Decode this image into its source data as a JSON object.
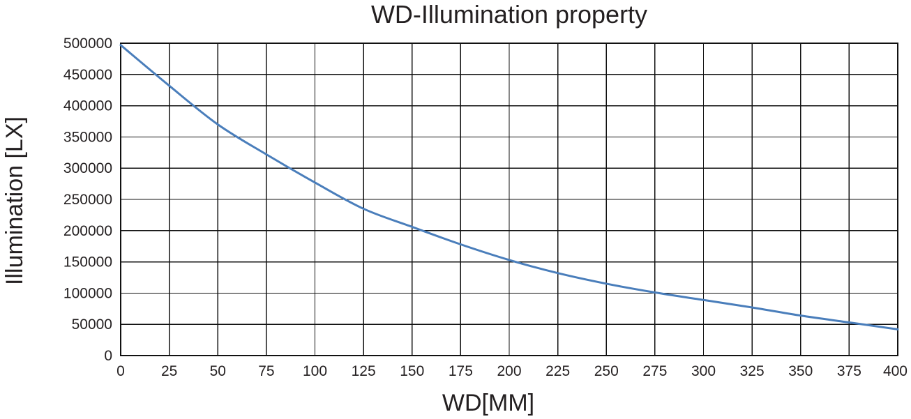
{
  "chart_data": {
    "type": "line",
    "title": "WD-Illumination property",
    "xlabel": "WD[MM]",
    "ylabel": "Illumination [LX]",
    "xlim": [
      0,
      400
    ],
    "ylim": [
      0,
      500000
    ],
    "grid": true,
    "x_ticks": [
      0,
      25,
      50,
      75,
      100,
      125,
      150,
      175,
      200,
      225,
      250,
      275,
      300,
      325,
      350,
      375,
      400
    ],
    "y_ticks": [
      0,
      50000,
      100000,
      150000,
      200000,
      250000,
      300000,
      350000,
      400000,
      450000,
      500000
    ],
    "x_tick_labels": [
      "0",
      "25",
      "50",
      "75",
      "100",
      "125",
      "150",
      "175",
      "200",
      "225",
      "250",
      "275",
      "300",
      "325",
      "350",
      "375",
      "400"
    ],
    "y_tick_labels": [
      "0",
      "50000",
      "100000",
      "150000",
      "200000",
      "250000",
      "300000",
      "350000",
      "400000",
      "450000",
      "500000"
    ],
    "series": [
      {
        "color": "#4a7ebb",
        "x": [
          0,
          25,
          50,
          75,
          100,
          125,
          150,
          175,
          200,
          225,
          250,
          275,
          300,
          325,
          350,
          375,
          400
        ],
        "y": [
          497000,
          432000,
          370000,
          322000,
          277000,
          235000,
          206000,
          178000,
          153000,
          132000,
          115000,
          101000,
          89000,
          77000,
          64000,
          53000,
          42000
        ]
      }
    ]
  }
}
